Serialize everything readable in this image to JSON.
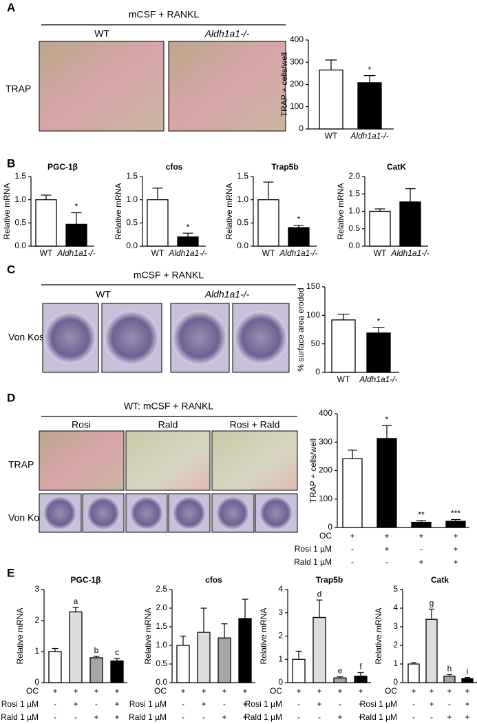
{
  "figure": {
    "panels": [
      "A",
      "B",
      "C",
      "D",
      "E"
    ],
    "a": {
      "condition": "mCSF + RANKL",
      "groups": [
        "WT",
        "Aldh1a1-/-"
      ],
      "row": "TRAP"
    },
    "c": {
      "condition": "mCSF + RANKL",
      "groups": [
        "WT",
        "Aldh1a1-/-"
      ],
      "row": "Von Kossa"
    },
    "d": {
      "condition": "WT: mCSF + RANKL",
      "groups": [
        "Rosi",
        "Rald",
        "Rosi + Rald"
      ],
      "rows": [
        "TRAP",
        "Von Kossa"
      ]
    }
  },
  "chart_data": [
    {
      "type": "bar",
      "y_label": "TRAP + cells/well",
      "categories": [
        "WT",
        "Aldh1a1-/-"
      ],
      "values": [
        265,
        208
      ],
      "errors": [
        45,
        32
      ],
      "colors": [
        "#ffffff",
        "#000000"
      ],
      "annotations": [
        null,
        "*"
      ],
      "ylim": [
        0,
        400
      ],
      "yticks": [
        0,
        100,
        200,
        300,
        400
      ]
    },
    {
      "type": "bar",
      "title": "PGC-1β",
      "y_label": "Relative mRNA",
      "categories": [
        "WT",
        "Aldh1a1-/-"
      ],
      "values": [
        1.0,
        0.47
      ],
      "errors": [
        0.1,
        0.25
      ],
      "colors": [
        "#ffffff",
        "#000000"
      ],
      "annotations": [
        null,
        "*"
      ],
      "ylim": [
        0,
        1.5
      ],
      "yticks": [
        {
          "value": 0,
          "label": "0.0"
        },
        0.5,
        {
          "value": 1,
          "label": "1.0"
        },
        1.5
      ]
    },
    {
      "type": "bar",
      "title": "cfos",
      "y_label": "Relative mRNA",
      "categories": [
        "WT",
        "Aldh1a1-/-"
      ],
      "values": [
        1.0,
        0.2
      ],
      "errors": [
        0.25,
        0.08
      ],
      "colors": [
        "#ffffff",
        "#000000"
      ],
      "annotations": [
        null,
        "*"
      ],
      "ylim": [
        0,
        1.5
      ],
      "yticks": [
        {
          "value": 0,
          "label": "0.0"
        },
        0.5,
        {
          "value": 1,
          "label": "1.0"
        },
        1.5
      ]
    },
    {
      "type": "bar",
      "title": "Trap5b",
      "y_label": "Relative mRNA",
      "categories": [
        "WT",
        "Aldh1a1-/-"
      ],
      "values": [
        1.0,
        0.4
      ],
      "errors": [
        0.38,
        0.05
      ],
      "colors": [
        "#ffffff",
        "#000000"
      ],
      "annotations": [
        null,
        "*"
      ],
      "ylim": [
        0,
        1.5
      ],
      "yticks": [
        {
          "value": 0,
          "label": "0.0"
        },
        0.5,
        {
          "value": 1,
          "label": "1.0"
        },
        1.5
      ]
    },
    {
      "type": "bar",
      "title": "CatK",
      "y_label": "Relative mRNA",
      "categories": [
        "WT",
        "Aldh1a1-/-"
      ],
      "values": [
        1.0,
        1.27
      ],
      "errors": [
        0.07,
        0.38
      ],
      "colors": [
        "#ffffff",
        "#000000"
      ],
      "annotations": [
        null,
        null
      ],
      "ylim": [
        0,
        2
      ],
      "yticks": [
        {
          "value": 0,
          "label": "0.0"
        },
        0.5,
        {
          "value": 1,
          "label": "1.0"
        },
        1.5,
        {
          "value": 2,
          "label": "2.0"
        }
      ]
    },
    {
      "type": "bar",
      "y_label": "% surface area eroded",
      "categories": [
        "WT",
        "Aldh1a1-/-"
      ],
      "values": [
        92,
        69
      ],
      "errors": [
        10,
        10
      ],
      "colors": [
        "#ffffff",
        "#000000"
      ],
      "annotations": [
        null,
        "*"
      ],
      "ylim": [
        0,
        150
      ],
      "yticks": [
        0,
        50,
        100,
        150
      ]
    },
    {
      "type": "bar",
      "y_label": "TRAP + cells/well",
      "values": [
        242,
        313,
        18,
        22
      ],
      "errors": [
        30,
        45,
        6,
        6
      ],
      "colors": [
        "#ffffff",
        "#000000",
        "#000000",
        "#000000"
      ],
      "annotations": [
        null,
        "*",
        "**",
        "***"
      ],
      "ylim": [
        0,
        400
      ],
      "yticks": [
        0,
        100,
        200,
        300,
        400
      ],
      "treatments": [
        {
          "label": "OC",
          "signs": [
            "+",
            "+",
            "+",
            "+"
          ]
        },
        {
          "label": "Rosi 1 µM",
          "signs": [
            "-",
            "+",
            "-",
            "+"
          ]
        },
        {
          "label": "Rald 1 µM",
          "signs": [
            "-",
            "-",
            "+",
            "+"
          ]
        }
      ]
    },
    {
      "type": "bar",
      "title": "PGC-1β",
      "y_label": "Relative mRNA",
      "values": [
        1.0,
        2.28,
        0.8,
        0.7
      ],
      "errors": [
        0.1,
        0.15,
        0.05,
        0.08
      ],
      "colors": [
        "#ffffff",
        "#dddddd",
        "#a6a6a6",
        "#000000"
      ],
      "annotations": [
        null,
        "a",
        "b",
        "c"
      ],
      "ylim": [
        0,
        3
      ],
      "yticks": [
        0,
        1,
        2,
        3
      ],
      "treatments": [
        {
          "label": "OC",
          "signs": [
            "+",
            "+",
            "+",
            "+"
          ]
        },
        {
          "label": "Rosi 1 µM",
          "signs": [
            "-",
            "+",
            "-",
            "+"
          ]
        },
        {
          "label": "Rald 1 µM",
          "signs": [
            "-",
            "-",
            "+",
            "+"
          ]
        }
      ]
    },
    {
      "type": "bar",
      "title": "cfos",
      "y_label": "Relative mRNA",
      "values": [
        1.0,
        1.35,
        1.2,
        1.72
      ],
      "errors": [
        0.25,
        0.65,
        0.38,
        0.52
      ],
      "colors": [
        "#ffffff",
        "#dddddd",
        "#a6a6a6",
        "#000000"
      ],
      "annotations": [
        null,
        null,
        null,
        null
      ],
      "ylim": [
        0,
        2.5
      ],
      "yticks": [
        {
          "value": 0,
          "label": "0.0"
        },
        0.5,
        {
          "value": 1,
          "label": "1.0"
        },
        1.5,
        {
          "value": 2,
          "label": "2.0"
        },
        2.5
      ],
      "treatments": [
        {
          "label": "OC",
          "signs": [
            "+",
            "+",
            "+",
            "+"
          ]
        },
        {
          "label": "Rosi 1 µM",
          "signs": [
            "-",
            "+",
            "-",
            "+"
          ]
        },
        {
          "label": "Rald 1 µM",
          "signs": [
            "-",
            "-",
            "+",
            "+"
          ]
        }
      ]
    },
    {
      "type": "bar",
      "title": "Trap5b",
      "y_label": "Relative mRNA",
      "values": [
        1.0,
        2.8,
        0.2,
        0.28
      ],
      "errors": [
        0.35,
        0.75,
        0.05,
        0.15
      ],
      "colors": [
        "#ffffff",
        "#dddddd",
        "#a6a6a6",
        "#000000"
      ],
      "annotations": [
        null,
        "d",
        "e",
        "f"
      ],
      "ylim": [
        0,
        4
      ],
      "yticks": [
        0,
        1,
        2,
        3,
        4
      ],
      "treatments": [
        {
          "label": "OC",
          "signs": [
            "+",
            "+",
            "+",
            "+"
          ]
        },
        {
          "label": "Rosi 1 µM",
          "signs": [
            "-",
            "+",
            "-",
            "+"
          ]
        },
        {
          "label": "Rald 1 µM",
          "signs": [
            "-",
            "-",
            "+",
            "+"
          ]
        }
      ]
    },
    {
      "type": "bar",
      "title": "Catk",
      "y_label": "Relative mRNA",
      "values": [
        1.0,
        3.4,
        0.35,
        0.22
      ],
      "errors": [
        0.07,
        0.55,
        0.08,
        0.05
      ],
      "colors": [
        "#ffffff",
        "#dddddd",
        "#a6a6a6",
        "#000000"
      ],
      "annotations": [
        null,
        "g",
        "h",
        "i"
      ],
      "ylim": [
        0,
        5
      ],
      "yticks": [
        0,
        1,
        2,
        3,
        4,
        5
      ],
      "treatments": [
        {
          "label": "OC",
          "signs": [
            "+",
            "+",
            "+",
            "+"
          ]
        },
        {
          "label": "Rosi 1 µM",
          "signs": [
            "-",
            "+",
            "-",
            "+"
          ]
        },
        {
          "label": "Rald 1 µM",
          "signs": [
            "-",
            "-",
            "+",
            "+"
          ]
        }
      ]
    }
  ]
}
